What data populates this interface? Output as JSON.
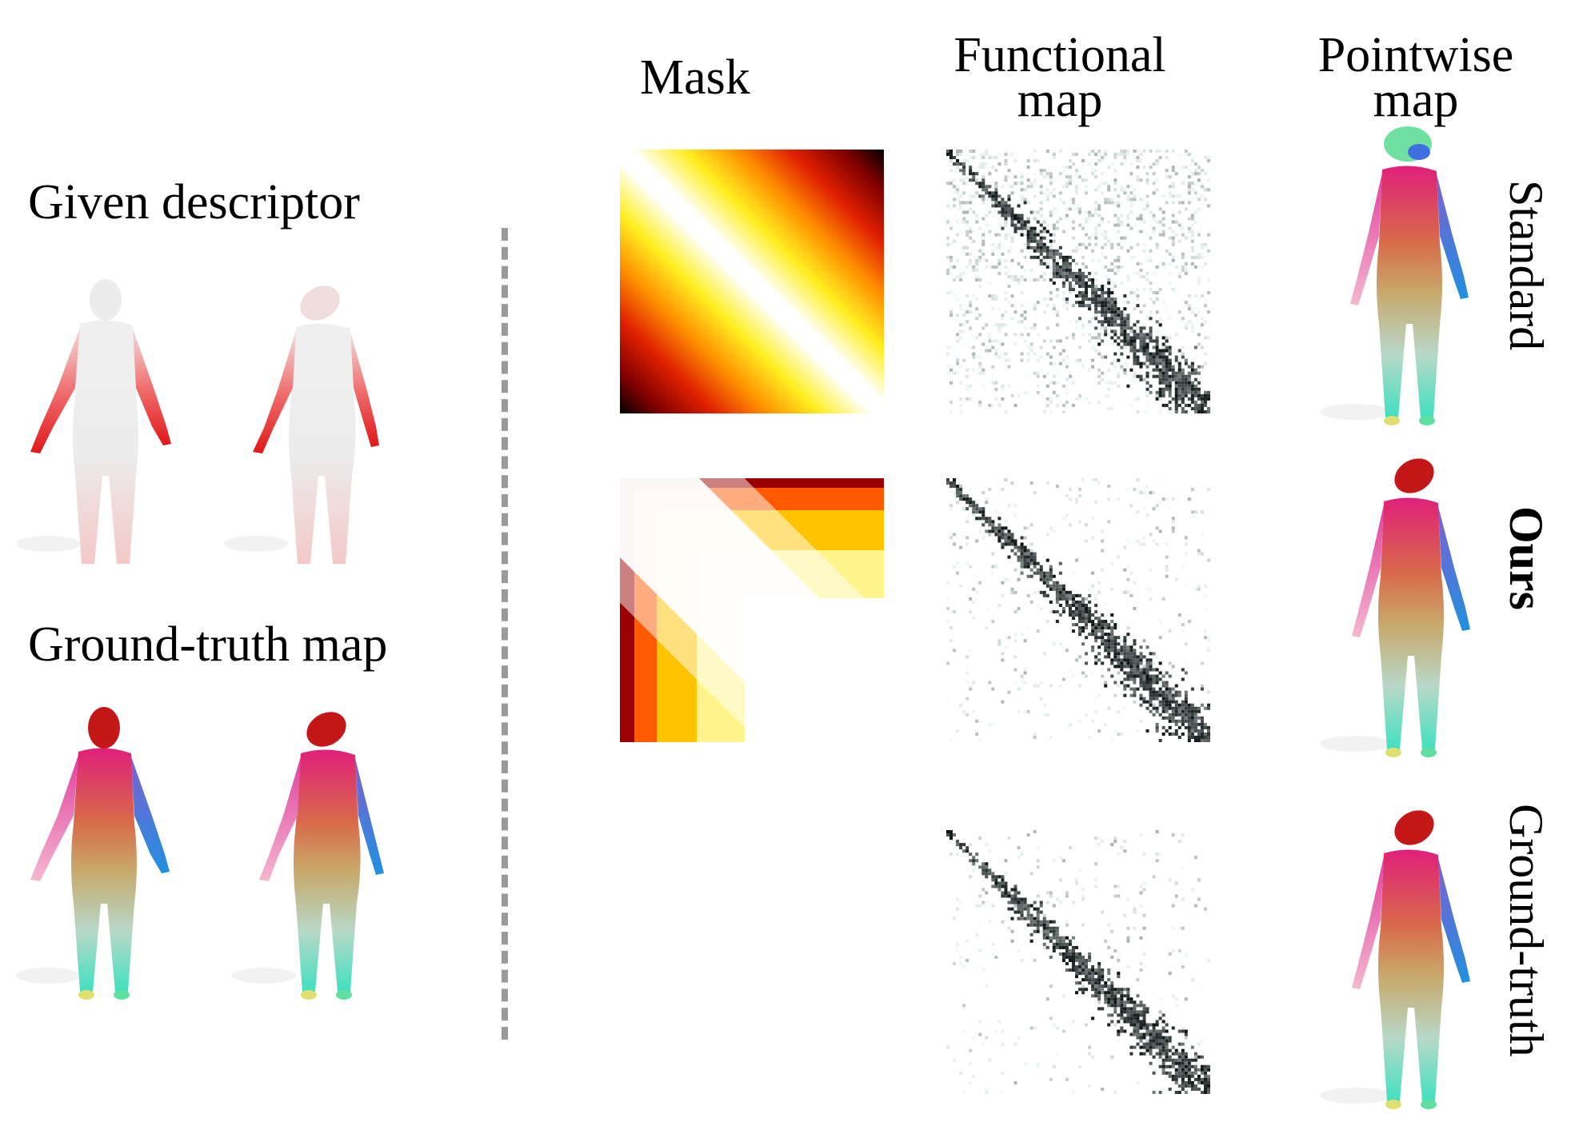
{
  "left": {
    "descriptor_label": "Given descriptor",
    "ground_truth_label": "Ground-truth map"
  },
  "columns": {
    "mask": "Mask",
    "functional_map": [
      "Functional",
      "map"
    ],
    "pointwise_map": [
      "Pointwise",
      "map"
    ]
  },
  "rows": {
    "standard": "Standard",
    "ours": "Ours",
    "ground_truth": "Ground-truth"
  },
  "colors": {
    "divider": "#9a9a9a",
    "descriptor_red": "#e02020",
    "body_white": "#eeeeee",
    "matrix_ink": "#0c1a1c"
  }
}
